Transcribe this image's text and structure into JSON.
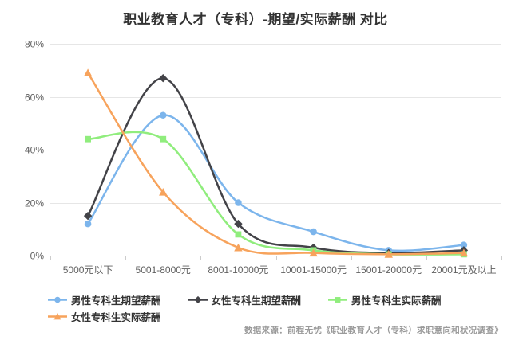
{
  "page": {
    "title": "职业教育人才（专科）-期望/实际薪酬 对比",
    "source_note": "数据来源：前程无忧《职业教育人才（专科）求职意向和状况调查》"
  },
  "chart_data": {
    "type": "line",
    "subtype": "spline",
    "title": "职业教育人才（专科）-期望/实际薪酬 对比",
    "xlabel": "",
    "ylabel": "",
    "categories": [
      "5000元以下",
      "5001-8000元",
      "8001-10000元",
      "10001-15000元",
      "15001-20000元",
      "20001元及以上"
    ],
    "series": [
      {
        "id": "male-expected",
        "name": "男性专科生期望薪酬",
        "color": "#7cb5ec",
        "marker": "circle",
        "values": [
          12,
          53,
          20,
          9,
          2,
          4
        ]
      },
      {
        "id": "female-expected",
        "name": "女性专科生期望薪酬",
        "color": "#434348",
        "marker": "diamond",
        "values": [
          15,
          67,
          12,
          3,
          1,
          2
        ]
      },
      {
        "id": "male-actual",
        "name": "男性专科生实际薪酬",
        "color": "#90ed7d",
        "marker": "square",
        "values": [
          44,
          44,
          8,
          2,
          0.5,
          0.5
        ]
      },
      {
        "id": "female-actual",
        "name": "女性专科生实际薪酬",
        "color": "#f7a35c",
        "marker": "triangle",
        "values": [
          69,
          24,
          3,
          1,
          0.5,
          1
        ]
      }
    ],
    "ylim": [
      0,
      80
    ],
    "yticks": [
      0,
      20,
      40,
      60,
      80
    ],
    "ytick_labels": [
      "0%",
      "20%",
      "40%",
      "60%",
      "80%"
    ],
    "grid": true,
    "legend_position": "bottom",
    "style": {
      "grid_color": "#e6e6e6",
      "axis_line_color": "#e0e0e0",
      "tick_color": "#cccccc",
      "label_color": "#606060",
      "title_color": "#333333",
      "legend_text_color": "#333333",
      "source_color": "#9a9a9a",
      "background": "#ffffff"
    }
  }
}
